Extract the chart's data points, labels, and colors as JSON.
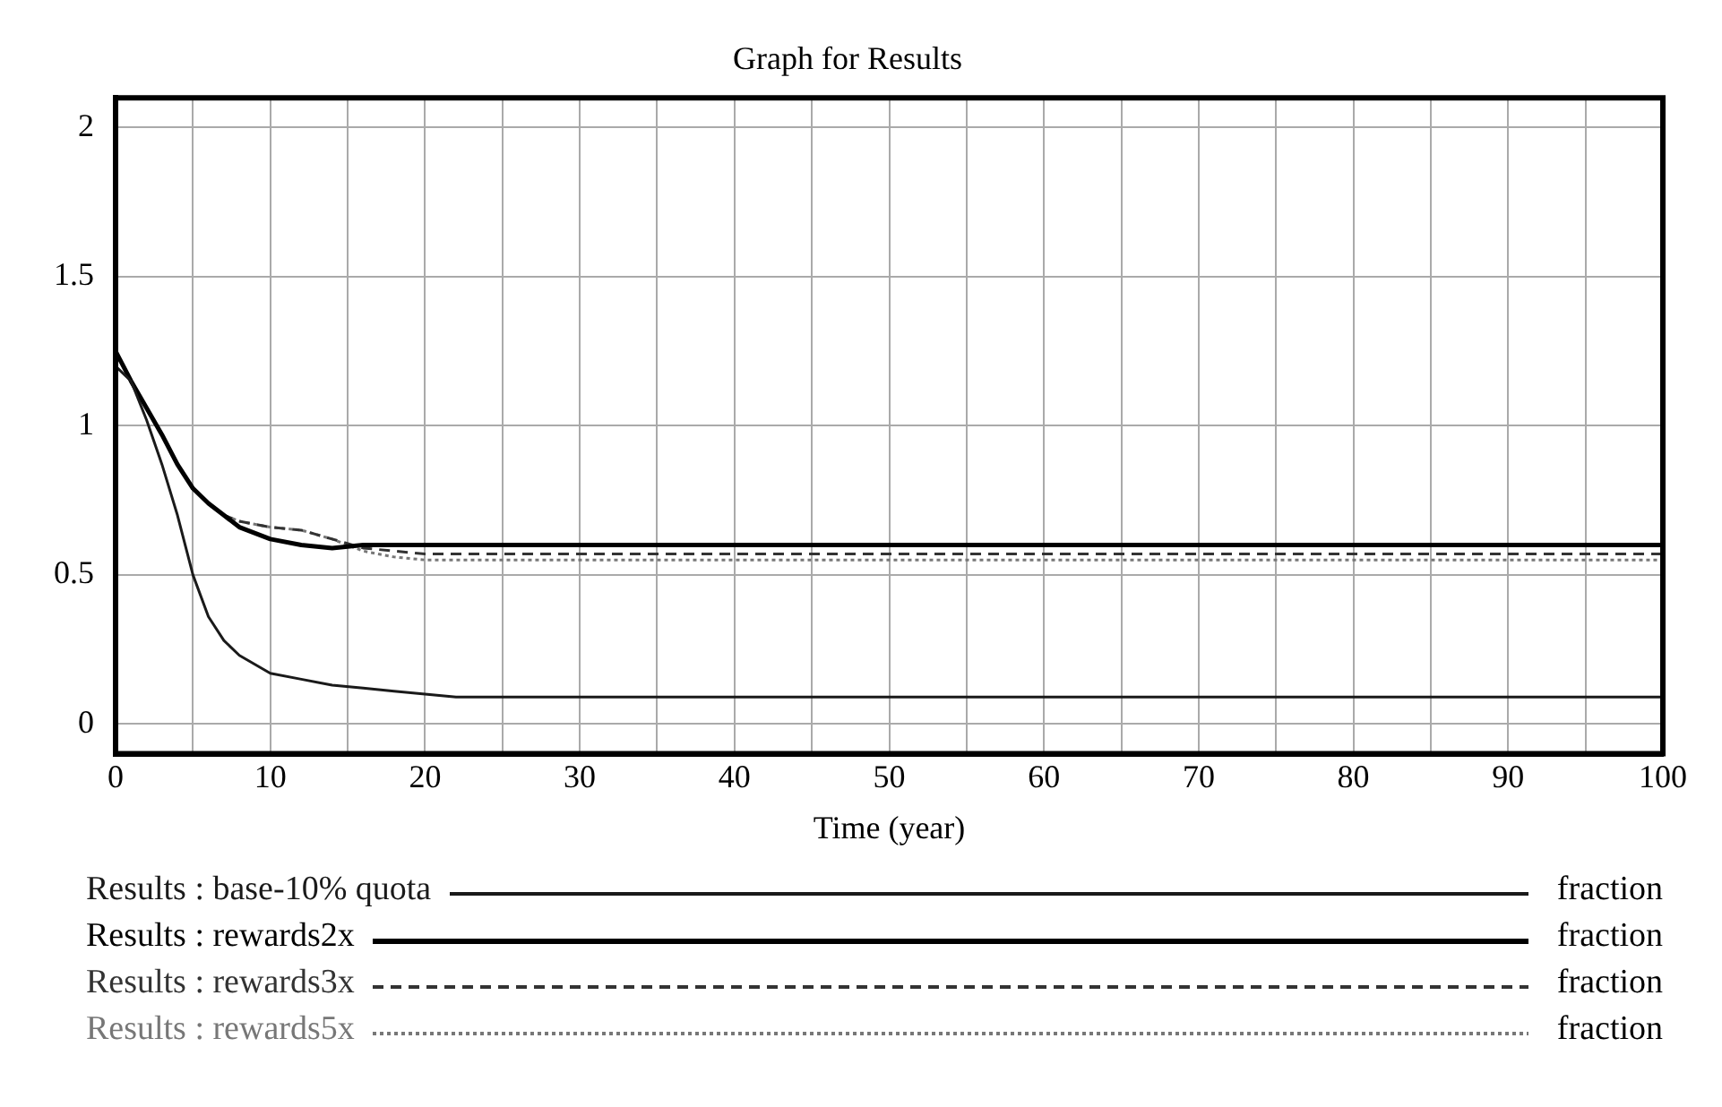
{
  "chart_data": {
    "type": "line",
    "title": "Graph for Results",
    "xlabel": "Time (year)",
    "x": [
      0,
      1,
      2,
      3,
      4,
      5,
      6,
      7,
      8,
      10,
      12,
      14,
      16,
      18,
      20,
      22,
      25,
      30,
      40,
      50,
      60,
      70,
      80,
      90,
      100
    ],
    "series": [
      {
        "name": "Results : base-10% quota",
        "color": "#1a1a1a",
        "line_style": "solid",
        "values": [
          1.2,
          1.15,
          1.02,
          0.87,
          0.7,
          0.5,
          0.36,
          0.28,
          0.23,
          0.17,
          0.15,
          0.13,
          0.12,
          0.11,
          0.1,
          0.09,
          0.09,
          0.09,
          0.09,
          0.09,
          0.09,
          0.09,
          0.09,
          0.09,
          0.09
        ]
      },
      {
        "name": "Results : rewards2x",
        "color": "#000000",
        "line_style": "solid",
        "values": [
          1.25,
          1.15,
          1.06,
          0.97,
          0.87,
          0.79,
          0.74,
          0.7,
          0.66,
          0.62,
          0.6,
          0.59,
          0.6,
          0.6,
          0.6,
          0.6,
          0.6,
          0.6,
          0.6,
          0.6,
          0.6,
          0.6,
          0.6,
          0.6,
          0.6
        ]
      },
      {
        "name": "Results : rewards3x",
        "color": "#333333",
        "line_style": "dashed",
        "values": [
          1.25,
          1.15,
          1.06,
          0.97,
          0.87,
          0.79,
          0.74,
          0.7,
          0.68,
          0.66,
          0.65,
          0.62,
          0.59,
          0.58,
          0.57,
          0.57,
          0.57,
          0.57,
          0.57,
          0.57,
          0.57,
          0.57,
          0.57,
          0.57,
          0.57
        ]
      },
      {
        "name": "Results : rewards5x",
        "color": "#777777",
        "line_style": "dotted",
        "values": [
          1.25,
          1.15,
          1.06,
          0.97,
          0.87,
          0.79,
          0.74,
          0.7,
          0.68,
          0.66,
          0.65,
          0.62,
          0.58,
          0.56,
          0.55,
          0.55,
          0.55,
          0.55,
          0.55,
          0.55,
          0.55,
          0.55,
          0.55,
          0.55,
          0.55
        ]
      }
    ],
    "annotations": [
      "fraction",
      "fraction",
      "fraction",
      "fraction"
    ],
    "xlim": [
      0,
      100
    ],
    "xticks": [
      0,
      {
        "value": 5,
        "label": null
      },
      10,
      {
        "value": 15,
        "label": null
      },
      20,
      {
        "value": 25,
        "label": null
      },
      30,
      {
        "value": 35,
        "label": null
      },
      40,
      {
        "value": 45,
        "label": null
      },
      50,
      {
        "value": 55,
        "label": null
      },
      60,
      {
        "value": 65,
        "label": null
      },
      70,
      {
        "value": 75,
        "label": null
      },
      80,
      {
        "value": 85,
        "label": null
      },
      90,
      {
        "value": 95,
        "label": null
      },
      100
    ],
    "ylim": [
      -0.1,
      2.1
    ],
    "yticks": [
      0,
      0.5,
      1,
      1.5,
      2
    ],
    "grid": true,
    "legend": "bottom",
    "marker": "none"
  }
}
